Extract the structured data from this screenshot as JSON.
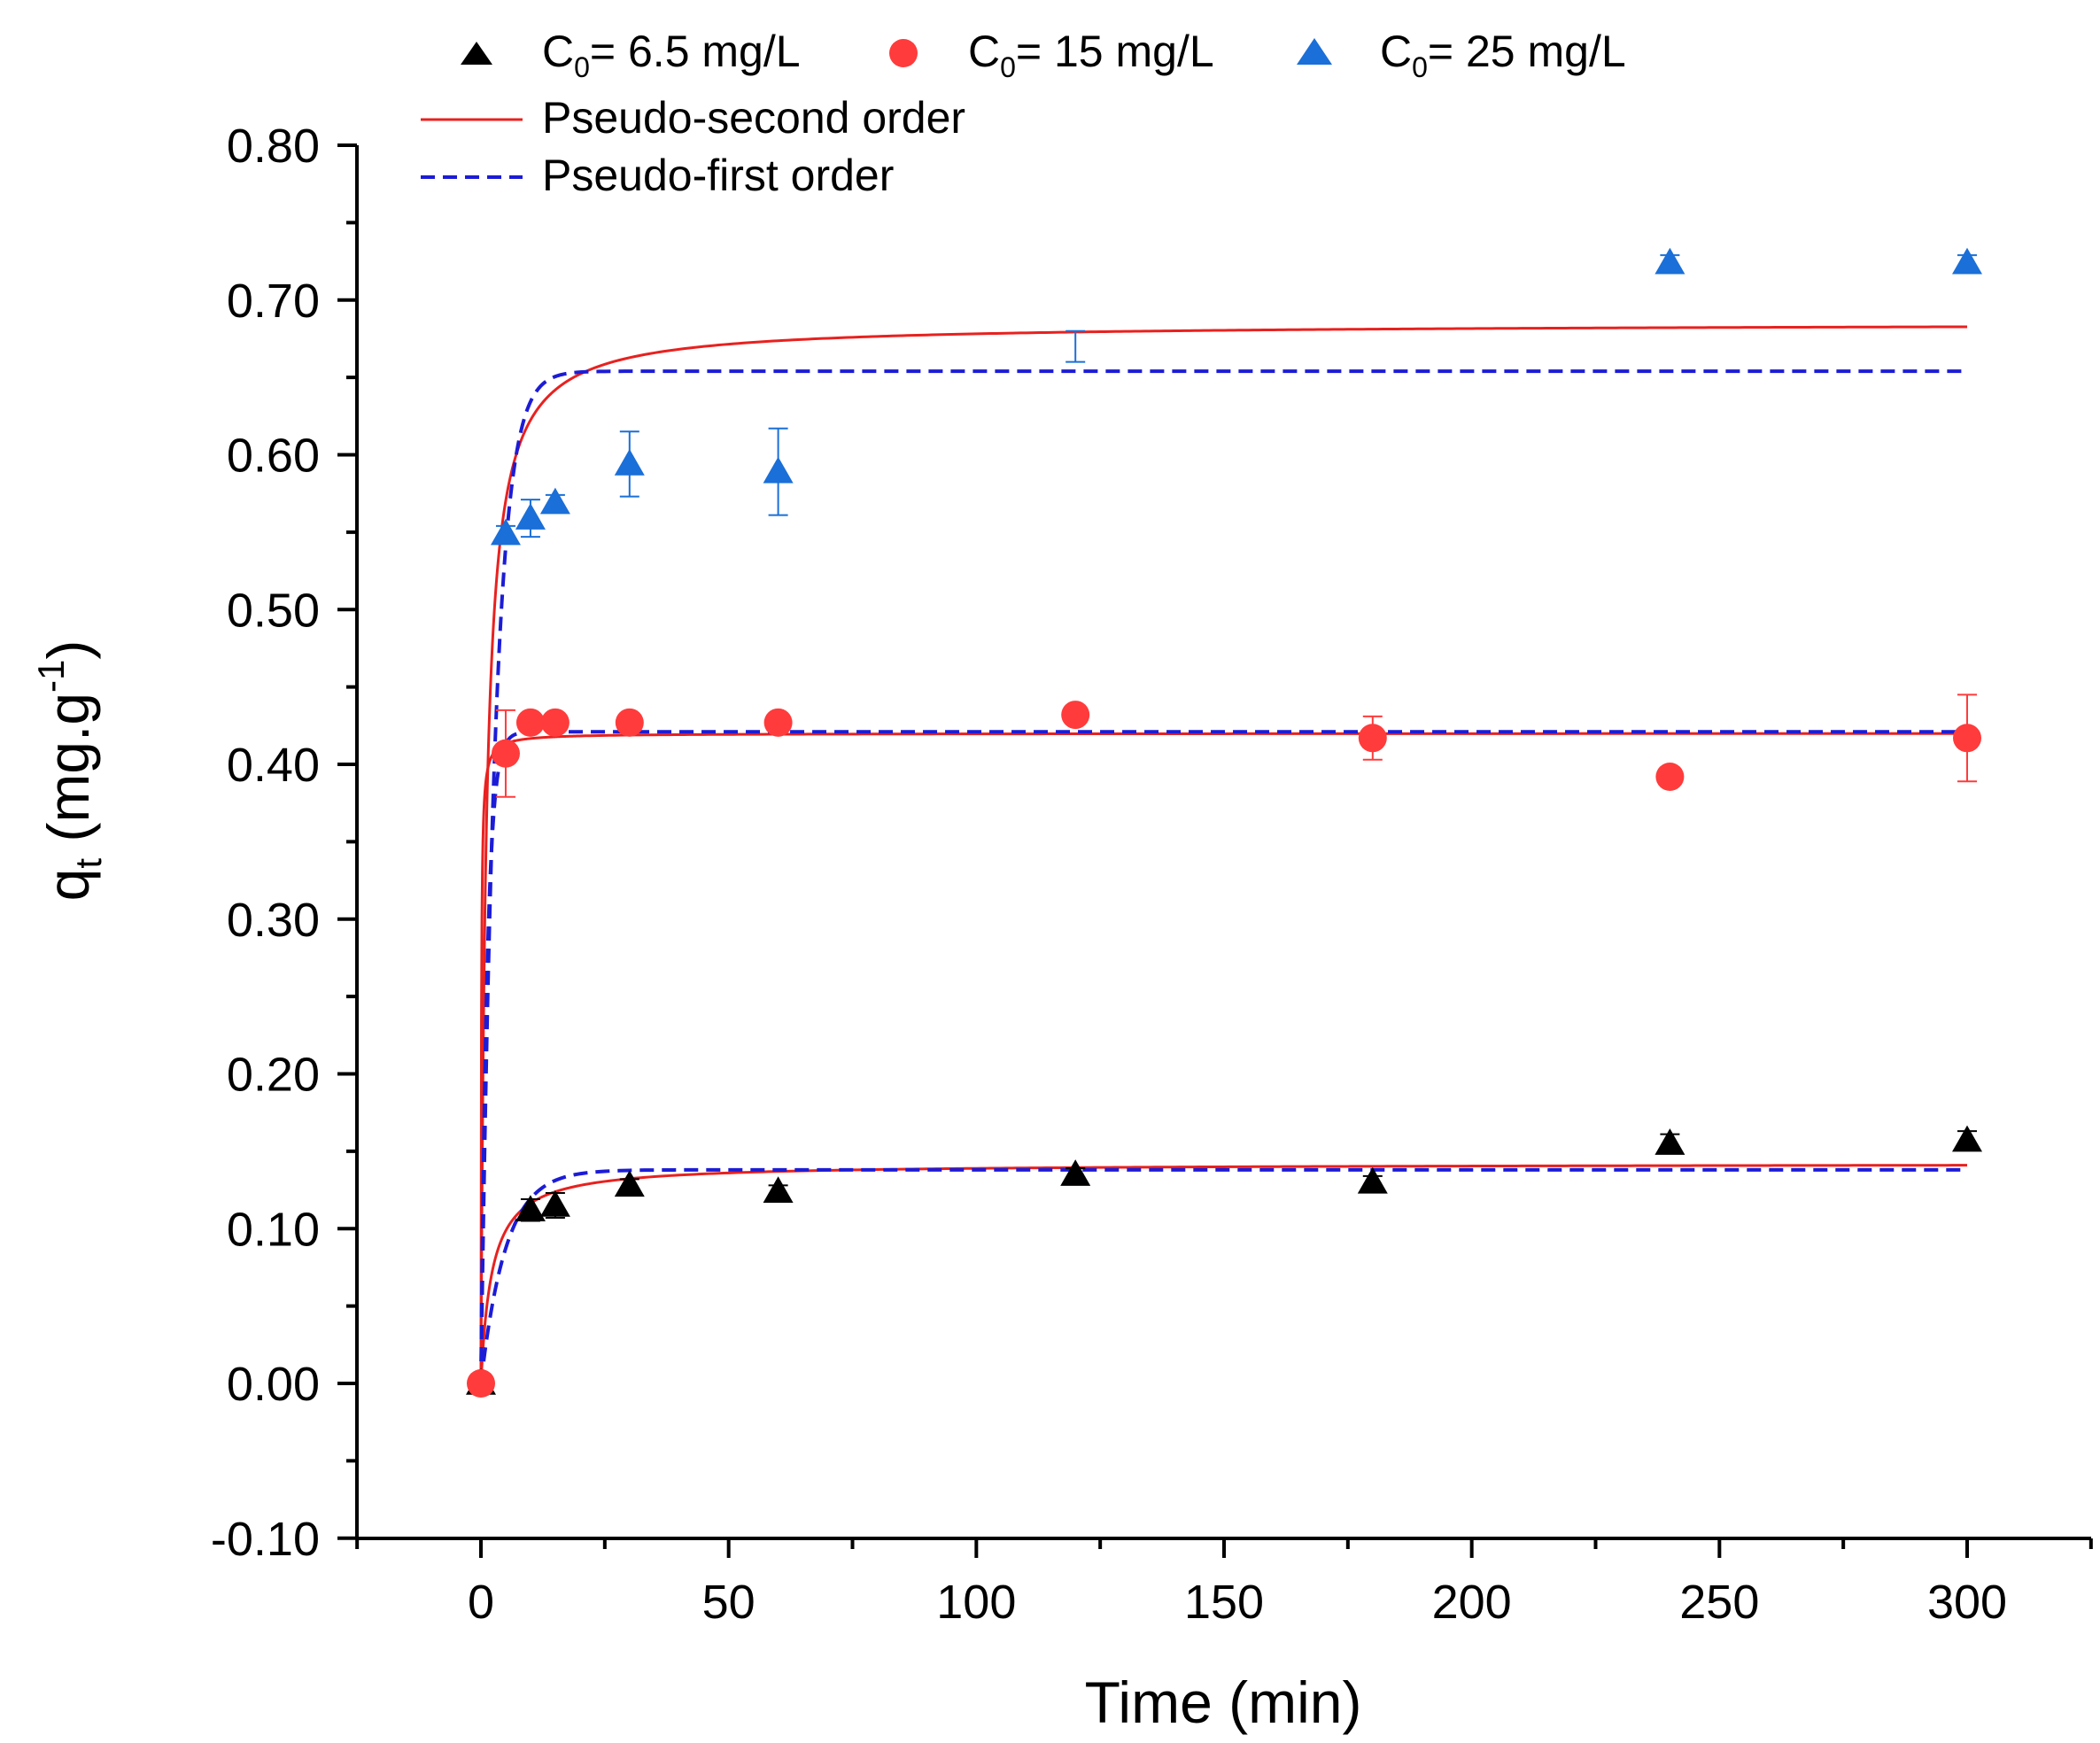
{
  "chart_data": {
    "type": "scatter",
    "title": "",
    "xlabel": "Time (min)",
    "ylabel_main": "q",
    "ylabel_sub": "t",
    "ylabel_rest": " (mg.g",
    "ylabel_sup": "-1",
    "ylabel_close": ")",
    "xlim": [
      -25,
      325
    ],
    "ylim": [
      -0.1,
      0.8
    ],
    "x_ticks": [
      0,
      50,
      100,
      150,
      200,
      250,
      300
    ],
    "x_tick_labels": [
      "0",
      "50",
      "100",
      "150",
      "200",
      "250",
      "300"
    ],
    "y_ticks": [
      -0.1,
      0.0,
      0.1,
      0.2,
      0.3,
      0.4,
      0.5,
      0.6,
      0.7,
      0.8
    ],
    "y_tick_labels": [
      "-0.10",
      "0.00",
      "0.10",
      "0.20",
      "0.30",
      "0.40",
      "0.50",
      "0.60",
      "0.70",
      "0.80"
    ],
    "grid": false,
    "legend_position": "top",
    "series": [
      {
        "name_prefix": "C",
        "name_sub": "0",
        "name_suffix": "= 6.5 mg/L",
        "marker": "triangle",
        "color": "#000000",
        "x": [
          0,
          10,
          15,
          30,
          60,
          120,
          180,
          240,
          300
        ],
        "y": [
          0.0,
          0.112,
          0.115,
          0.128,
          0.124,
          0.135,
          0.13,
          0.155,
          0.157
        ],
        "err": [
          0.0,
          0.007,
          0.008,
          0.004,
          0.004,
          0.004,
          0.004,
          0.006,
          0.006
        ]
      },
      {
        "name_prefix": "C",
        "name_sub": "0",
        "name_suffix": "= 15 mg/L",
        "marker": "circle",
        "color": "#ff3b3b",
        "x": [
          0,
          5,
          10,
          15,
          30,
          60,
          120,
          180,
          240,
          300
        ],
        "y": [
          0.0,
          0.407,
          0.427,
          0.427,
          0.427,
          0.427,
          0.432,
          0.417,
          0.392,
          0.417
        ],
        "err": [
          0.0,
          0.028,
          0.0,
          0.0,
          0.0,
          0.0,
          0.004,
          0.014,
          0.004,
          0.028
        ]
      },
      {
        "name_prefix": "C",
        "name_sub": "0",
        "name_suffix": "= 25 mg/L",
        "marker": "triangle",
        "color": "#1a6fd8",
        "x": [
          5,
          10,
          15,
          30,
          60,
          120,
          240,
          300
        ],
        "y": [
          0.549,
          0.559,
          0.569,
          0.594,
          0.589,
          0.67,
          0.724,
          0.724
        ],
        "err": [
          0.005,
          0.012,
          0.005,
          0.021,
          0.028,
          0.01,
          0.005,
          0.005
        ],
        "hide_marker": [
          false,
          false,
          false,
          false,
          false,
          true,
          false,
          false
        ]
      }
    ],
    "fits": [
      {
        "name": "Pseudo-second order",
        "color": "#e8211f",
        "dash": false,
        "model": "pso",
        "curves": [
          {
            "qe": 0.142,
            "k": 3.2
          },
          {
            "qe": 0.42,
            "k": 30.0
          },
          {
            "qe": 0.685,
            "k": 1.45
          }
        ]
      },
      {
        "name": "Pseudo-first order",
        "color": "#1c1cd6",
        "dash": true,
        "model": "pfo",
        "curves": [
          {
            "qe": 0.138,
            "k": 0.2
          },
          {
            "qe": 0.421,
            "k": 0.8
          },
          {
            "qe": 0.654,
            "k": 0.35
          }
        ]
      }
    ]
  }
}
